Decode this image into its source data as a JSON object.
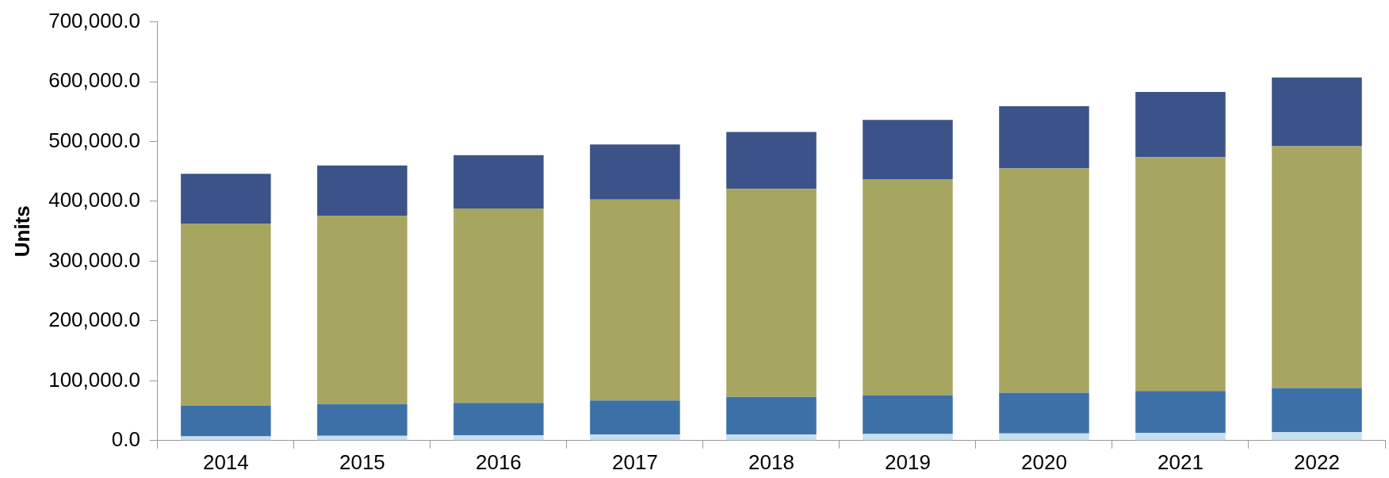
{
  "chart_data": {
    "type": "bar",
    "stacked": true,
    "ylabel": "Units",
    "categories": [
      "2014",
      "2015",
      "2016",
      "2017",
      "2018",
      "2019",
      "2020",
      "2021",
      "2022"
    ],
    "series": [
      {
        "color": "#c6e0f0",
        "values": [
          7000,
          8000,
          9000,
          10000,
          10000,
          11000,
          12000,
          13000,
          14000
        ]
      },
      {
        "color": "#3e70a8",
        "values": [
          51000,
          53000,
          54000,
          57000,
          63000,
          65000,
          68000,
          70000,
          74000
        ]
      },
      {
        "color": "#a6a660",
        "values": [
          305000,
          315000,
          325000,
          336000,
          348000,
          361000,
          375000,
          391000,
          404000
        ]
      },
      {
        "color": "#3b5388",
        "values": [
          83000,
          84000,
          89000,
          92000,
          95000,
          99000,
          104000,
          109000,
          115000
        ]
      }
    ],
    "ylim": [
      0,
      700000
    ],
    "yticks": [
      {
        "value": 0,
        "label": "0.0"
      },
      {
        "value": 100000,
        "label": "100,000.0"
      },
      {
        "value": 200000,
        "label": "200,000.0"
      },
      {
        "value": 300000,
        "label": "300,000.0"
      },
      {
        "value": 400000,
        "label": "400,000.0"
      },
      {
        "value": 500000,
        "label": "500,000.0"
      },
      {
        "value": 600000,
        "label": "600,000.0"
      },
      {
        "value": 700000,
        "label": "700,000.0"
      }
    ],
    "grid": false,
    "legend": false
  }
}
